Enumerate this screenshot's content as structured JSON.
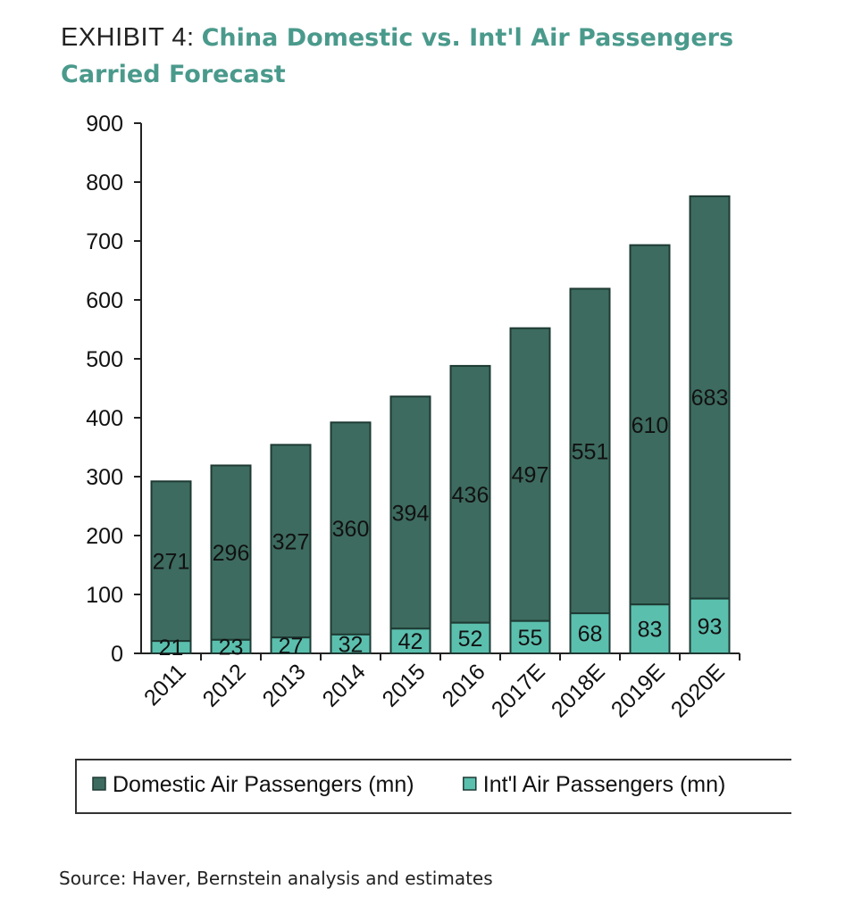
{
  "header": {
    "prefix": "EXHIBIT 4:",
    "title": "China Domestic vs. Int'l Air Passengers Carried Forecast"
  },
  "source": "Source: Haver, Bernstein analysis and estimates",
  "colors": {
    "domestic": "#3d6b5f",
    "intl": "#5bbfae",
    "title_accent": "#4a9a8c"
  },
  "chart_data": {
    "type": "bar",
    "stacked": true,
    "categories": [
      "2011",
      "2012",
      "2013",
      "2014",
      "2015",
      "2016",
      "2017E",
      "2018E",
      "2019E",
      "2020E"
    ],
    "series": [
      {
        "name": "Int'l Air Passengers (mn)",
        "values": [
          21,
          23,
          27,
          32,
          42,
          52,
          55,
          68,
          83,
          93
        ]
      },
      {
        "name": "Domestic Air Passengers (mn)",
        "values": [
          271,
          296,
          327,
          360,
          394,
          436,
          497,
          551,
          610,
          683
        ]
      }
    ],
    "yticks": [
      "0",
      "100",
      "200",
      "300",
      "400",
      "500",
      "600",
      "700",
      "800",
      "900"
    ],
    "ylim": [
      0,
      900
    ],
    "legend": [
      {
        "label": "Domestic Air Passengers (mn)",
        "color": "#3d6b5f"
      },
      {
        "label": "Int'l Air Passengers (mn)",
        "color": "#5bbfae"
      }
    ],
    "legend_position": "bottom",
    "grid": false
  }
}
